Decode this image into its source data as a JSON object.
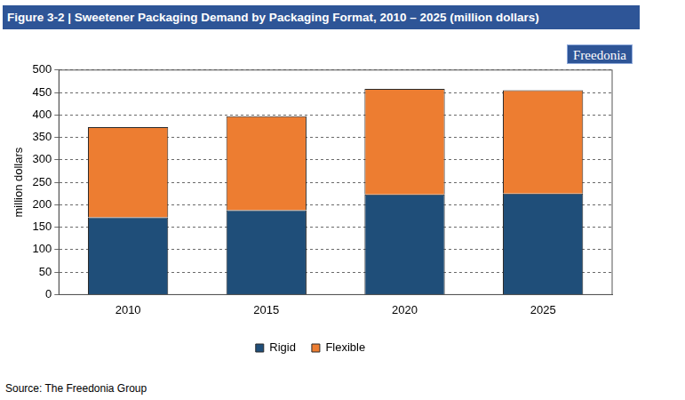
{
  "chart_data": {
    "type": "bar",
    "title": "Figure 3-2 | Sweetener Packaging Demand by Packaging Format, 2010 – 2025 (million dollars)",
    "y_label": "million dollars",
    "source": "Source: The Freedonia Group",
    "logo": "Freedonia",
    "categories": [
      "2010",
      "2015",
      "2020",
      "2025"
    ],
    "series": [
      {
        "name": "Rigid",
        "color": "#1F4E79",
        "values": [
          172,
          188,
          223,
          225
        ]
      },
      {
        "name": "Flexible",
        "color": "#ED7D31",
        "values": [
          201,
          209,
          235,
          230
        ]
      }
    ],
    "stacked": true,
    "ylim": [
      0,
      500
    ],
    "yticks": [
      0,
      50,
      100,
      150,
      200,
      250,
      300,
      350,
      400,
      450,
      500
    ],
    "grid": true,
    "legend": "bottom"
  }
}
